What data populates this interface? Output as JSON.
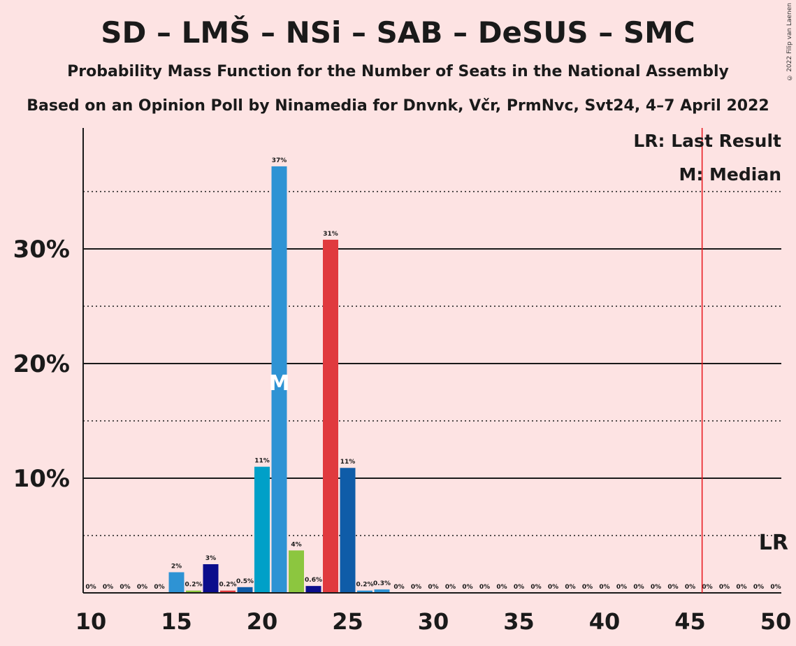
{
  "header": {
    "title": "SD – LMŠ – NSi – SAB – DeSUS – SMC",
    "subtitle1": "Probability Mass Function for the Number of Seats in the National Assembly",
    "subtitle2": "Based on an Opinion Poll by Ninamedia for Dnvnk, Včr, PrmNvc, Svt24, 4–7 April 2022",
    "copyright": "© 2022 Filip van Laenen"
  },
  "legend": {
    "lr_text": "LR: Last Result",
    "m_text": "M: Median"
  },
  "markers": {
    "median_label": "M",
    "median_seat": 21,
    "lr_label": "LR",
    "last_result_seat": 45.7
  },
  "chart_data": {
    "type": "bar",
    "xlim": [
      10,
      50
    ],
    "ylim": [
      0,
      40
    ],
    "y_ticks": [
      10,
      20,
      30
    ],
    "y_tick_labels": [
      "10%",
      "20%",
      "30%"
    ],
    "x_ticks": [
      10,
      15,
      20,
      25,
      30,
      35,
      40,
      45,
      50
    ],
    "x_tick_labels": [
      "10",
      "15",
      "20",
      "25",
      "30",
      "35",
      "40",
      "45",
      "50"
    ],
    "grid": "solid lines at 10, 20, 30; dotted lines at 5, 15, 25, 35",
    "seats": [
      10,
      11,
      12,
      13,
      14,
      15,
      16,
      17,
      18,
      19,
      20,
      21,
      22,
      23,
      24,
      25,
      26,
      27,
      28,
      29,
      30,
      31,
      32,
      33,
      34,
      35,
      36,
      37,
      38,
      39,
      40,
      41,
      42,
      43,
      44,
      45,
      46,
      47,
      48,
      49,
      50
    ],
    "values": [
      0,
      0,
      0,
      0,
      0,
      1.8,
      0.2,
      2.5,
      0.2,
      0.5,
      11,
      37.2,
      3.7,
      0.6,
      30.8,
      10.9,
      0.2,
      0.3,
      0,
      0,
      0,
      0,
      0,
      0,
      0,
      0,
      0,
      0,
      0,
      0,
      0,
      0,
      0,
      0,
      0,
      0,
      0,
      0,
      0,
      0,
      0
    ],
    "labels": [
      "0%",
      "0%",
      "0%",
      "0%",
      "0%",
      "2%",
      "0.2%",
      "3%",
      "0.2%",
      "0.5%",
      "11%",
      "37%",
      "4%",
      "0.6%",
      "31%",
      "11%",
      "0.2%",
      "0.3%",
      "0%",
      "0%",
      "0%",
      "0%",
      "0%",
      "0%",
      "0%",
      "0%",
      "0%",
      "0%",
      "0%",
      "0%",
      "0%",
      "0%",
      "0%",
      "0%",
      "0%",
      "0%",
      "0%",
      "0%",
      "0%",
      "0%",
      "0%"
    ],
    "colors": {
      "15": "#2e93d4",
      "16": "#8cc63f",
      "17": "#0b0d8c",
      "18": "#e03a3e",
      "19": "#0f5ca8",
      "20": "#00a0c8",
      "21": "#2e93d4",
      "22": "#8cc63f",
      "23": "#0b0d8c",
      "24": "#e03a3e",
      "25": "#0f5ca8",
      "26": "#2e93d4",
      "27": "#2e93d4"
    },
    "default_color": "#2e93d4",
    "lr_line_color": "#e8141a"
  }
}
